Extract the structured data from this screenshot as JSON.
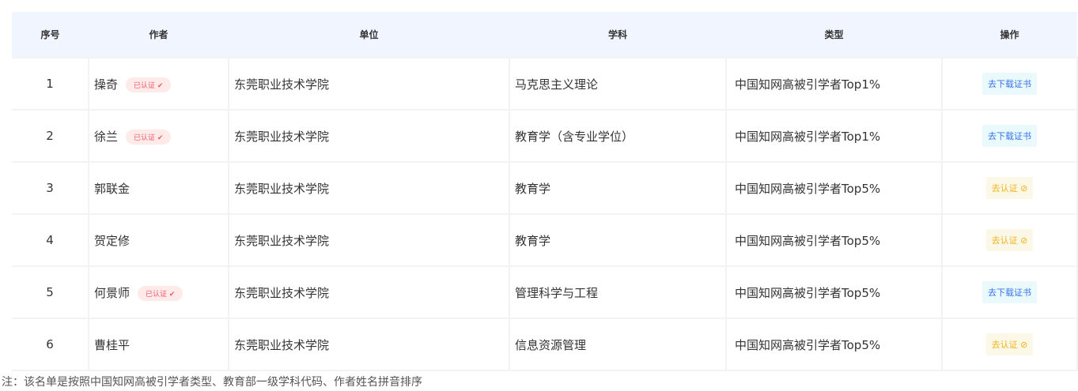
{
  "columns": [
    "序号",
    "作者",
    "单位",
    "学科",
    "类型",
    "操作"
  ],
  "rows": [
    {
      "no": "1",
      "author": "操奇",
      "verified": true,
      "unit": "东莞职业技术学院",
      "subject": "马克思主义理论",
      "type": "中国知网高被引学者Top1%",
      "action": "去下载证书"
    },
    {
      "no": "2",
      "author": "徐兰",
      "verified": true,
      "unit": "东莞职业技术学院",
      "subject": "教育学（含专业学位）",
      "type": "中国知网高被引学者Top1%",
      "action": "去下载证书"
    },
    {
      "no": "3",
      "author": "郭联金",
      "verified": false,
      "unit": "东莞职业技术学院",
      "subject": "教育学",
      "type": "中国知网高被引学者Top5%",
      "action": "去认证"
    },
    {
      "no": "4",
      "author": "贺定修",
      "verified": false,
      "unit": "东莞职业技术学院",
      "subject": "教育学",
      "type": "中国知网高被引学者Top5%",
      "action": "去认证"
    },
    {
      "no": "5",
      "author": "何景师",
      "verified": true,
      "unit": "东莞职业技术学院",
      "subject": "管理科学与工程",
      "type": "中国知网高被引学者Top5%",
      "action": "去下载证书"
    },
    {
      "no": "6",
      "author": "曹桂平",
      "verified": false,
      "unit": "东莞职业技术学院",
      "subject": "信息资源管理",
      "type": "中国知网高被引学者Top5%",
      "action": "去认证"
    }
  ],
  "verified_badge": "已认证",
  "note": "注：该名单是按照中国知网高被引学者类型、教育部一级学科代码、作者姓名拼音排序",
  "colors": {
    "header_bg": "#f0f5ff",
    "download": "#3474e8",
    "verify": "#f2b216",
    "badge": "#f05a6a"
  }
}
